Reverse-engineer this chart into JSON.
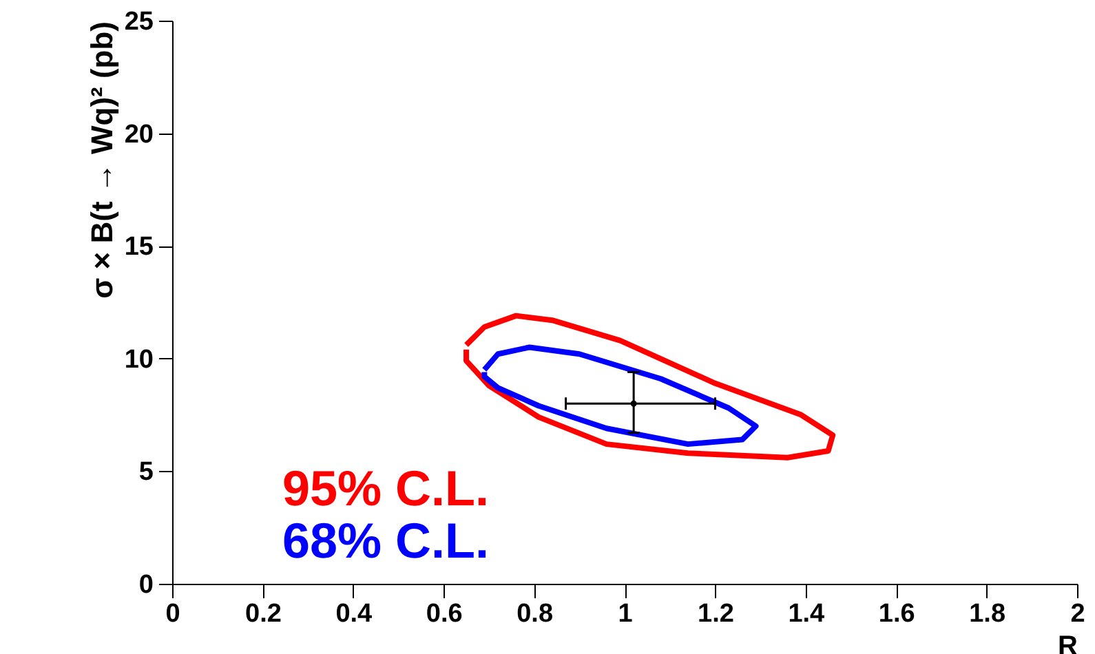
{
  "chart_data": {
    "type": "line",
    "xlabel": "R",
    "ylabel": "σ × B(t → Wq)² (pb)",
    "xlim": [
      0,
      2
    ],
    "xticks": [
      0,
      0.2,
      0.4,
      0.6,
      0.8,
      1,
      1.2,
      1.4,
      1.6,
      1.8,
      2
    ],
    "ylim": [
      0,
      25
    ],
    "yticks": [
      0,
      5,
      10,
      15,
      20,
      25
    ],
    "grid": false,
    "legend": "bottom left",
    "series": [
      {
        "name": "95% C.L.",
        "color": "#ff0000",
        "x": [
          0.65,
          0.69,
          0.76,
          0.84,
          0.99,
          1.2,
          1.39,
          1.46,
          1.45,
          1.36,
          1.14,
          0.96,
          0.81,
          0.7,
          0.65,
          0.65
        ],
        "values": [
          10.6,
          11.4,
          11.9,
          11.7,
          10.8,
          8.9,
          7.5,
          6.6,
          5.9,
          5.6,
          5.8,
          6.2,
          7.4,
          8.8,
          9.9,
          10.4
        ]
      },
      {
        "name": "68% C.L.",
        "color": "#0000ff",
        "x": [
          0.69,
          0.72,
          0.79,
          0.9,
          1.08,
          1.23,
          1.29,
          1.26,
          1.14,
          0.96,
          0.81,
          0.72,
          0.69,
          0.69
        ],
        "values": [
          9.5,
          10.2,
          10.5,
          10.2,
          9.1,
          7.8,
          7.0,
          6.4,
          6.2,
          6.9,
          7.9,
          8.7,
          9.2,
          9.4
        ]
      },
      {
        "color": "#000000",
        "type": "scatter",
        "marker": "circle",
        "x": [
          1.02
        ],
        "values": [
          8.0
        ],
        "errors": [
          [
            6.7,
            9.4
          ]
        ],
        "xerrors": [
          [
            0.87,
            1.2
          ]
        ]
      }
    ]
  }
}
